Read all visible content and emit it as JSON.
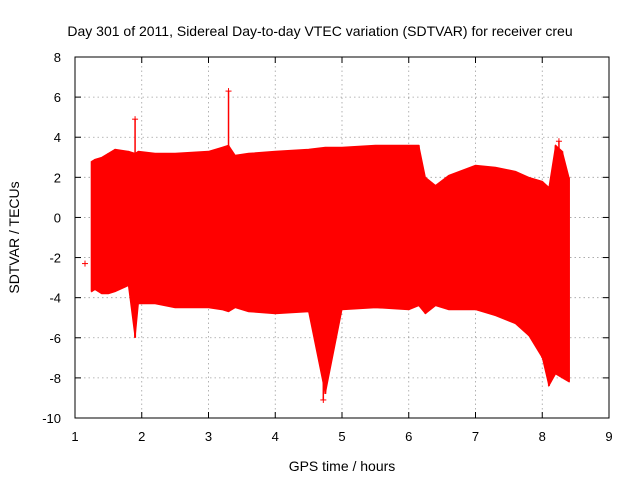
{
  "chart_data": {
    "type": "area",
    "title": "Day 301 of 2011, Sidereal Day-to-day VTEC variation (SDTVAR) for receiver creu",
    "xlabel": "GPS time / hours",
    "ylabel": "SDTVAR / TECUs",
    "xlim": [
      1,
      9
    ],
    "ylim": [
      -10,
      8
    ],
    "x_ticks": [
      "1",
      "2",
      "3",
      "4",
      "5",
      "6",
      "7",
      "8",
      "9"
    ],
    "y_ticks": [
      "8",
      "6",
      "4",
      "2",
      "0",
      "-2",
      "-4",
      "-6",
      "-8",
      "-10"
    ],
    "grid": true,
    "color": "#ff0000",
    "series": [
      {
        "name": "SDTVAR",
        "x": [
          1.25,
          1.3,
          1.4,
          1.5,
          1.6,
          1.8,
          1.9,
          1.95,
          2.2,
          2.5,
          3.0,
          3.2,
          3.3,
          3.4,
          3.6,
          4.0,
          4.5,
          4.75,
          5.0,
          5.5,
          6.0,
          6.15,
          6.25,
          6.4,
          6.6,
          7.0,
          7.3,
          7.6,
          7.8,
          8.0,
          8.1,
          8.2,
          8.3,
          8.4
        ],
        "upper": [
          2.8,
          2.9,
          3.0,
          3.2,
          3.4,
          3.3,
          3.2,
          3.3,
          3.2,
          3.2,
          3.3,
          3.5,
          3.6,
          3.1,
          3.2,
          3.3,
          3.4,
          3.5,
          3.5,
          3.6,
          3.6,
          3.6,
          2.0,
          1.6,
          2.1,
          2.6,
          2.5,
          2.3,
          2.0,
          1.8,
          1.5,
          3.6,
          3.3,
          2.0
        ],
        "lower": [
          -3.7,
          -3.6,
          -3.8,
          -3.8,
          -3.7,
          -3.4,
          -6.0,
          -4.3,
          -4.3,
          -4.5,
          -4.5,
          -4.6,
          -4.7,
          -4.5,
          -4.7,
          -4.8,
          -4.7,
          -8.8,
          -4.6,
          -4.5,
          -4.6,
          -4.4,
          -4.8,
          -4.4,
          -4.6,
          -4.6,
          -4.9,
          -5.3,
          -5.9,
          -7.0,
          -8.4,
          -7.8,
          -8.0,
          -8.2
        ]
      }
    ],
    "outliers": [
      {
        "x": 1.15,
        "y": -2.3
      },
      {
        "x": 1.9,
        "y": 4.9
      },
      {
        "x": 3.3,
        "y": 6.3
      },
      {
        "x": 4.72,
        "y": -9.1
      },
      {
        "x": 8.25,
        "y": 3.8
      }
    ]
  }
}
